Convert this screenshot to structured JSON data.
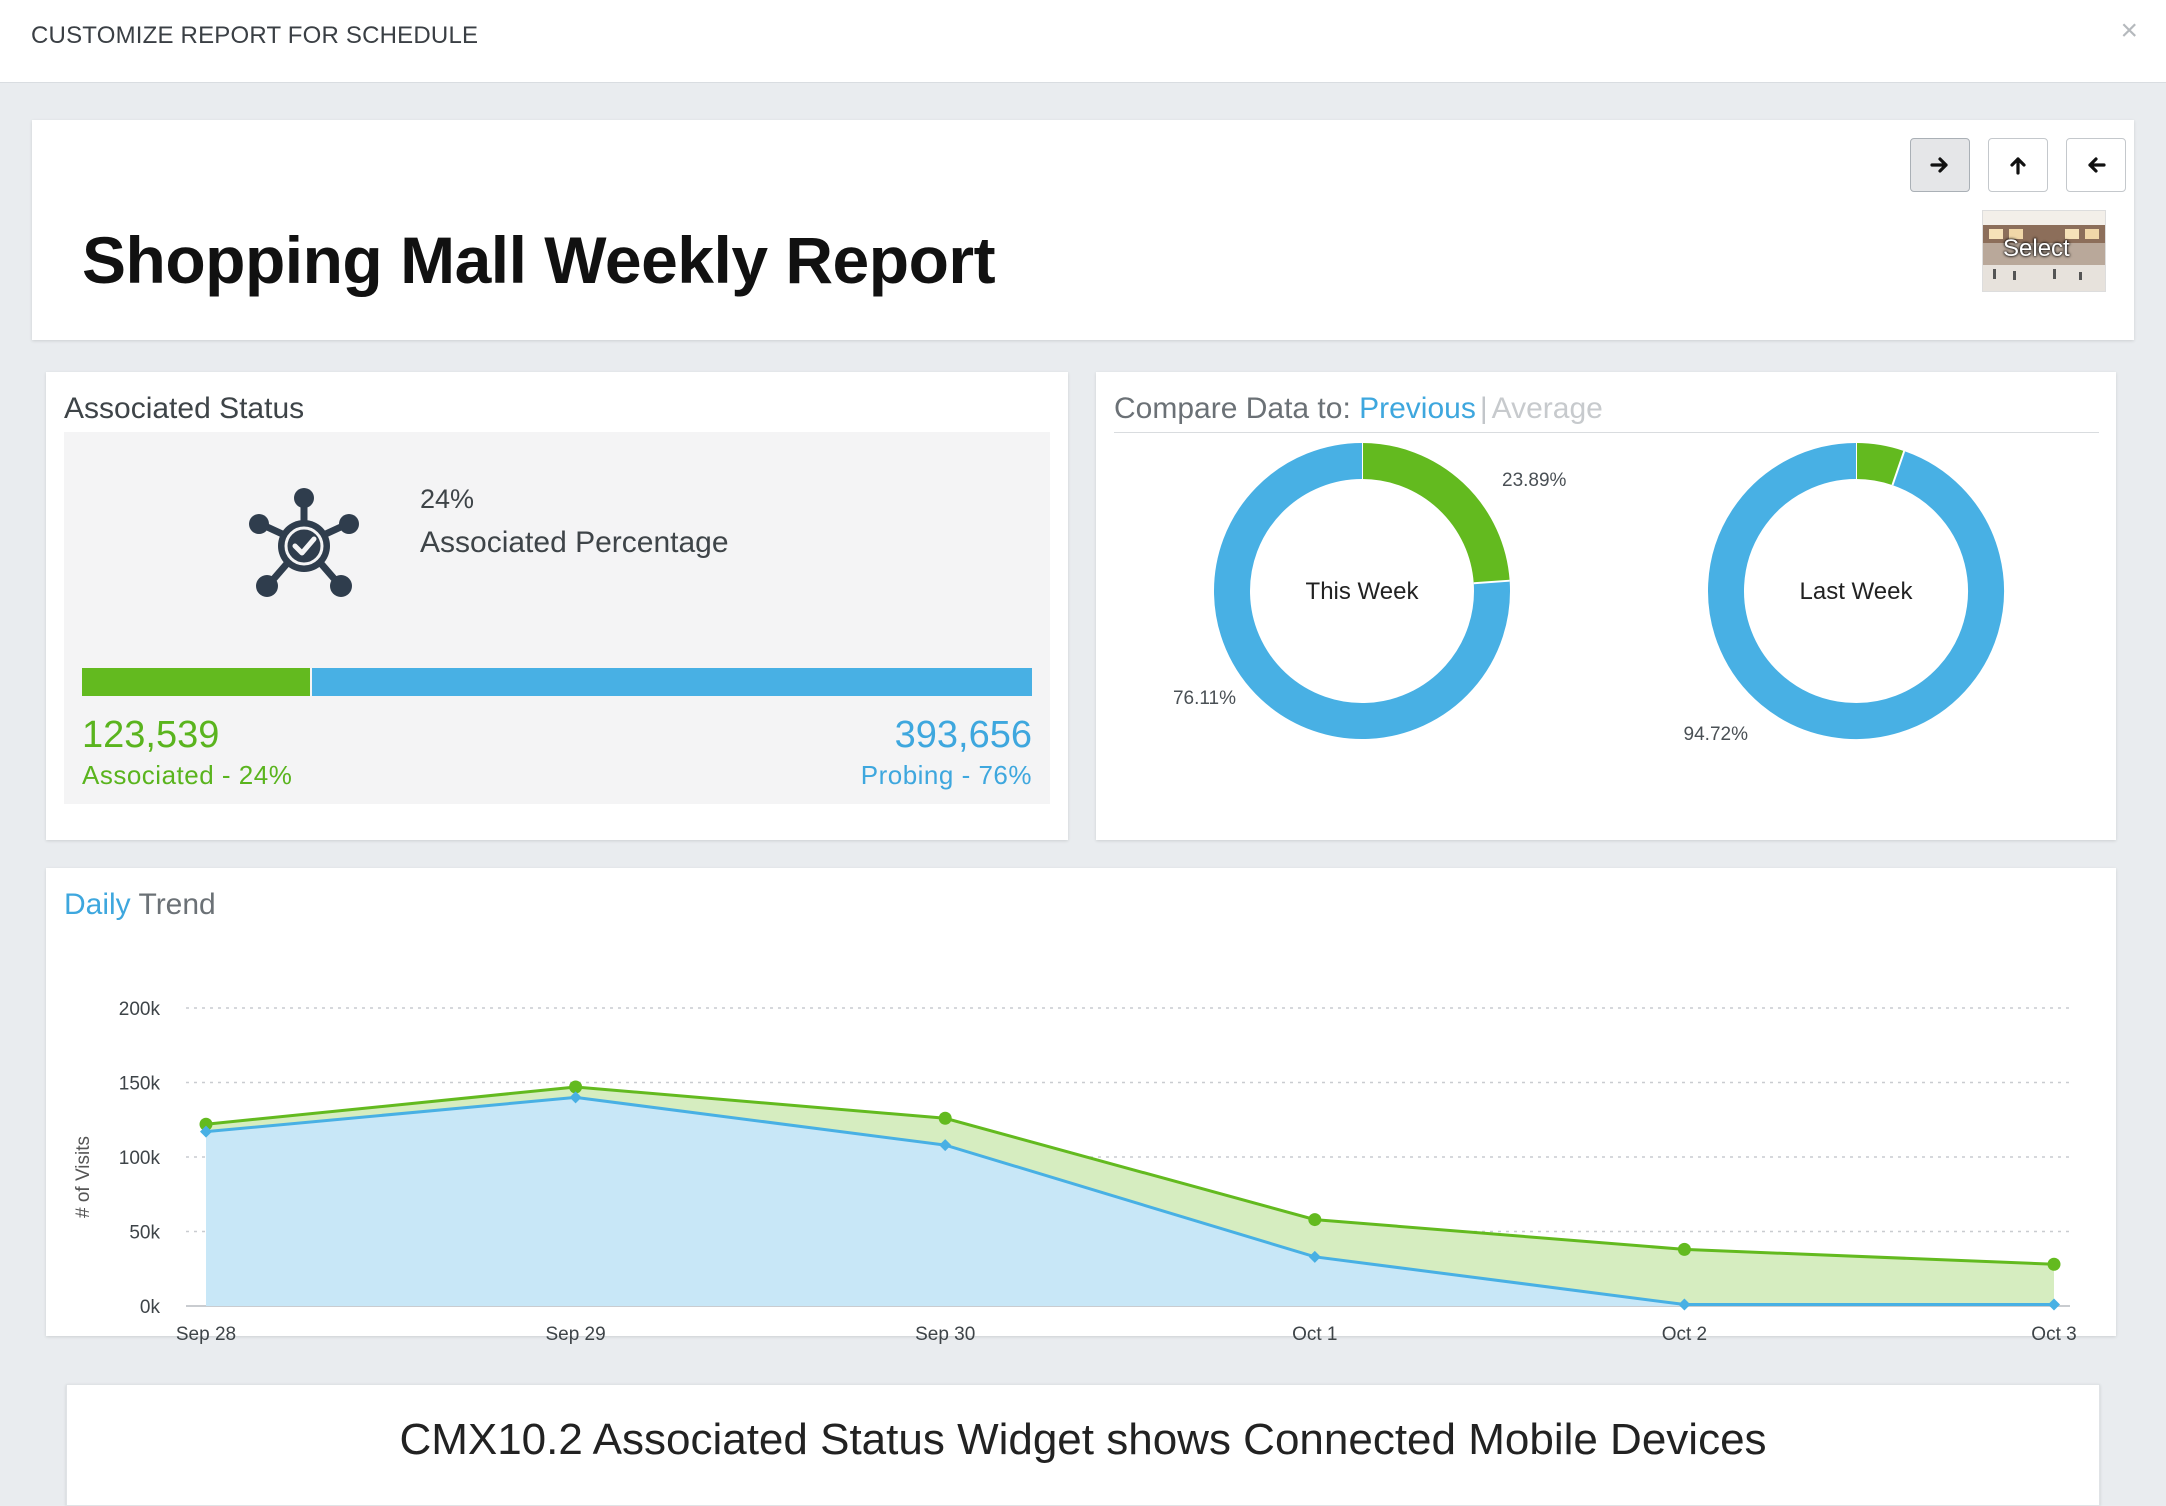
{
  "modal": {
    "title": "CUSTOMIZE REPORT FOR SCHEDULE",
    "close_glyph": "×"
  },
  "report": {
    "title": "Shopping Mall Weekly Report",
    "thumbnail_label": "Select",
    "nav_buttons": [
      {
        "icon": "arrow-right-icon",
        "glyph": "→",
        "active": true
      },
      {
        "icon": "arrow-up-icon",
        "glyph": "↑",
        "active": false
      },
      {
        "icon": "arrow-left-icon",
        "glyph": "←",
        "active": false
      }
    ]
  },
  "associated_status": {
    "title": "Associated Status",
    "icon": "network-check-icon",
    "percent_text": "24%",
    "percent_label": "Associated Percentage",
    "associated_fraction": 0.24,
    "associated_count": "123,539",
    "associated_label": "Associated - 24%",
    "probing_count": "393,656",
    "probing_label": "Probing - 76%"
  },
  "compare": {
    "label": "Compare Data to:",
    "option_active": "Previous",
    "separator": "|",
    "option_inactive": "Average"
  },
  "trend": {
    "title_accent": "Daily",
    "title_rest": "Trend"
  },
  "caption": {
    "text": "CMX10.2 Associated Status Widget shows Connected Mobile Devices"
  },
  "colors": {
    "associated": "#63ba1f",
    "probing": "#48b0e4",
    "accent": "#3ea7de"
  },
  "chart_data": [
    {
      "type": "pie",
      "title": "This Week",
      "slices": [
        {
          "label": "23.89%",
          "value": 23.89,
          "color": "#63ba1f"
        },
        {
          "label": "76.11%",
          "value": 76.11,
          "color": "#48b0e4"
        }
      ]
    },
    {
      "type": "pie",
      "title": "Last Week",
      "slices": [
        {
          "label": "",
          "value": 5.28,
          "color": "#63ba1f"
        },
        {
          "label": "94.72%",
          "value": 94.72,
          "color": "#48b0e4"
        }
      ]
    },
    {
      "type": "area",
      "categories": [
        "Sep 28",
        "Sep 29",
        "Sep 30",
        "Oct 1",
        "Oct 2",
        "Oct 3"
      ],
      "ylabel": "# of Visits",
      "ylim": [
        0,
        200000
      ],
      "yticks": [
        0,
        50000,
        100000,
        150000,
        200000
      ],
      "ytick_labels": [
        "0k",
        "50k",
        "100k",
        "150k",
        "200k"
      ],
      "grid": true,
      "series": [
        {
          "color": "#63ba1f",
          "marker": "circle",
          "values": [
            122000,
            147000,
            126000,
            58000,
            38000,
            28000
          ]
        },
        {
          "color": "#48b0e4",
          "marker": "diamond",
          "values": [
            117000,
            140000,
            108000,
            33000,
            1000,
            1000
          ]
        }
      ]
    }
  ]
}
